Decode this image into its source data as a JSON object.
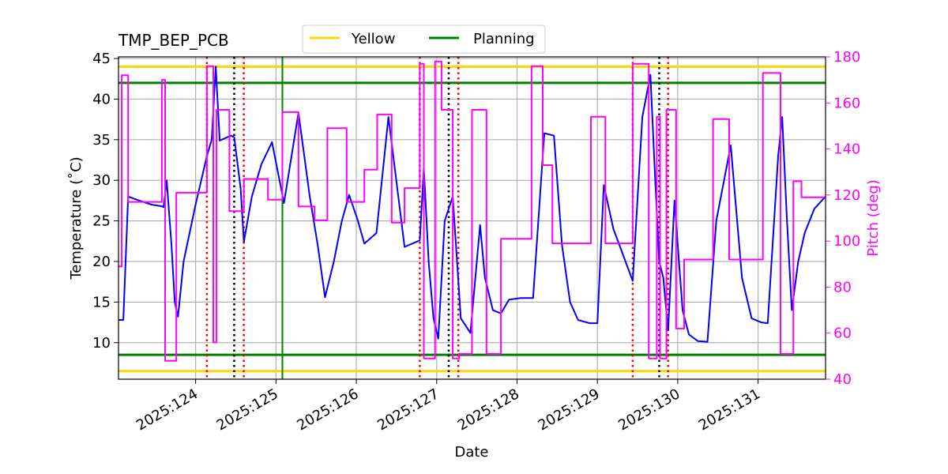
{
  "chart_data": {
    "type": "line",
    "title": "TMP_BEP_PCB",
    "xlabel": "Date",
    "ylabel": "Temperature ($^\\circ$C)",
    "ylabel_display": "Temperature (˚C)",
    "y2label": "Pitch (deg)",
    "xlim": [
      123.04,
      131.84
    ],
    "ylim": [
      5.5,
      45.2
    ],
    "y2lim": [
      40,
      180
    ],
    "x_ticks": [
      124,
      125,
      126,
      127,
      128,
      129,
      130,
      131
    ],
    "x_tick_labels": [
      "2025:124",
      "2025:125",
      "2025:126",
      "2025:127",
      "2025:128",
      "2025:129",
      "2025:130",
      "2025:131"
    ],
    "y_ticks": [
      10,
      15,
      20,
      25,
      30,
      35,
      40,
      45
    ],
    "y_tick_labels": [
      "10",
      "15",
      "20",
      "25",
      "30",
      "35",
      "40",
      "45"
    ],
    "y2_ticks": [
      40,
      60,
      80,
      100,
      120,
      140,
      160,
      180
    ],
    "y2_tick_labels": [
      "40",
      "60",
      "80",
      "100",
      "120",
      "140",
      "160",
      "180"
    ],
    "grid": true,
    "legend": {
      "placement": "top-center",
      "entries": [
        {
          "label": "Yellow",
          "color": "#ffd700"
        },
        {
          "label": "Planning",
          "color": "#008000"
        }
      ]
    },
    "limit_lines": [
      {
        "name": "Yellow",
        "values": [
          44.0,
          6.5
        ],
        "color": "#ffd700"
      },
      {
        "name": "Planning",
        "values": [
          42.0,
          8.5
        ],
        "color": "#008000"
      }
    ],
    "planning_vertical_x": 125.08,
    "red_dotted_x": [
      124.14,
      124.6,
      126.79,
      127.27,
      129.44,
      129.88
    ],
    "black_dotted_x": [
      124.48,
      127.15,
      129.77
    ],
    "series": [
      {
        "name": "TMP_BEP_PCB",
        "axis": "left",
        "color": "#0000ff",
        "points": [
          [
            123.04,
            12.8
          ],
          [
            123.1,
            12.8
          ],
          [
            123.16,
            28.0
          ],
          [
            123.3,
            27.5
          ],
          [
            123.45,
            27.0
          ],
          [
            123.58,
            26.8
          ],
          [
            123.6,
            26.7
          ],
          [
            123.64,
            30.0
          ],
          [
            123.7,
            22.0
          ],
          [
            123.74,
            15.0
          ],
          [
            123.78,
            13.2
          ],
          [
            123.85,
            20.0
          ],
          [
            124.0,
            27.0
          ],
          [
            124.14,
            33.0
          ],
          [
            124.2,
            35.0
          ],
          [
            124.25,
            44.0
          ],
          [
            124.3,
            34.9
          ],
          [
            124.44,
            35.5
          ],
          [
            124.48,
            35.3
          ],
          [
            124.56,
            29.0
          ],
          [
            124.6,
            22.4
          ],
          [
            124.7,
            28.0
          ],
          [
            124.82,
            32.0
          ],
          [
            124.95,
            34.7
          ],
          [
            125.1,
            27.2
          ],
          [
            125.28,
            38.3
          ],
          [
            125.42,
            28.0
          ],
          [
            125.52,
            22.0
          ],
          [
            125.61,
            15.6
          ],
          [
            125.72,
            20.0
          ],
          [
            125.82,
            25.0
          ],
          [
            125.91,
            28.2
          ],
          [
            126.02,
            25.0
          ],
          [
            126.1,
            22.2
          ],
          [
            126.25,
            23.5
          ],
          [
            126.4,
            37.8
          ],
          [
            126.6,
            21.8
          ],
          [
            126.79,
            22.6
          ],
          [
            126.84,
            31.5
          ],
          [
            126.9,
            20.0
          ],
          [
            126.96,
            13.0
          ],
          [
            127.02,
            10.5
          ],
          [
            127.1,
            25.0
          ],
          [
            127.2,
            28.0
          ],
          [
            127.3,
            13.0
          ],
          [
            127.42,
            11.2
          ],
          [
            127.54,
            24.5
          ],
          [
            127.6,
            18.0
          ],
          [
            127.7,
            14.0
          ],
          [
            127.8,
            13.6
          ],
          [
            127.9,
            15.3
          ],
          [
            128.05,
            15.5
          ],
          [
            128.2,
            15.5
          ],
          [
            128.34,
            35.8
          ],
          [
            128.46,
            35.5
          ],
          [
            128.56,
            22.0
          ],
          [
            128.66,
            15.0
          ],
          [
            128.76,
            12.8
          ],
          [
            128.9,
            12.4
          ],
          [
            129.0,
            12.4
          ],
          [
            129.08,
            29.4
          ],
          [
            129.2,
            24.0
          ],
          [
            129.35,
            20.0
          ],
          [
            129.44,
            17.6
          ],
          [
            129.56,
            37.8
          ],
          [
            129.66,
            43.0
          ],
          [
            129.72,
            30.0
          ],
          [
            129.77,
            20.0
          ],
          [
            129.82,
            18.0
          ],
          [
            129.88,
            11.5
          ],
          [
            129.96,
            27.5
          ],
          [
            130.06,
            14.0
          ],
          [
            130.14,
            11.0
          ],
          [
            130.25,
            10.2
          ],
          [
            130.37,
            10.1
          ],
          [
            130.48,
            25.0
          ],
          [
            130.66,
            34.3
          ],
          [
            130.8,
            18.0
          ],
          [
            130.92,
            13.0
          ],
          [
            131.04,
            12.5
          ],
          [
            131.12,
            12.4
          ],
          [
            131.2,
            25.0
          ],
          [
            131.25,
            33.0
          ],
          [
            131.3,
            37.8
          ],
          [
            131.36,
            25.0
          ],
          [
            131.42,
            14.0
          ],
          [
            131.5,
            20.0
          ],
          [
            131.58,
            23.5
          ],
          [
            131.7,
            26.5
          ],
          [
            131.84,
            28.0
          ]
        ]
      },
      {
        "name": "Pitch",
        "axis": "right",
        "color": "#ff00ff",
        "points": [
          [
            123.04,
            89
          ],
          [
            123.08,
            89
          ],
          [
            123.08,
            172
          ],
          [
            123.16,
            172
          ],
          [
            123.16,
            117
          ],
          [
            123.58,
            117
          ],
          [
            123.58,
            170
          ],
          [
            123.62,
            170
          ],
          [
            123.62,
            48
          ],
          [
            123.76,
            48
          ],
          [
            123.76,
            121
          ],
          [
            124.14,
            121
          ],
          [
            124.14,
            176
          ],
          [
            124.22,
            176
          ],
          [
            124.22,
            56
          ],
          [
            124.26,
            56
          ],
          [
            124.26,
            157
          ],
          [
            124.42,
            157
          ],
          [
            124.42,
            113
          ],
          [
            124.6,
            113
          ],
          [
            124.6,
            127
          ],
          [
            124.9,
            127
          ],
          [
            124.9,
            118
          ],
          [
            125.08,
            118
          ],
          [
            125.08,
            156
          ],
          [
            125.28,
            156
          ],
          [
            125.28,
            115
          ],
          [
            125.48,
            115
          ],
          [
            125.48,
            109
          ],
          [
            125.64,
            109
          ],
          [
            125.64,
            149
          ],
          [
            125.88,
            149
          ],
          [
            125.88,
            117
          ],
          [
            126.1,
            117
          ],
          [
            126.1,
            131
          ],
          [
            126.26,
            131
          ],
          [
            126.26,
            155
          ],
          [
            126.44,
            155
          ],
          [
            126.44,
            108
          ],
          [
            126.6,
            108
          ],
          [
            126.6,
            123
          ],
          [
            126.79,
            123
          ],
          [
            126.79,
            177
          ],
          [
            126.84,
            177
          ],
          [
            126.84,
            49
          ],
          [
            126.98,
            49
          ],
          [
            126.98,
            178
          ],
          [
            127.06,
            178
          ],
          [
            127.06,
            157
          ],
          [
            127.2,
            157
          ],
          [
            127.2,
            49
          ],
          [
            127.28,
            49
          ],
          [
            127.28,
            51
          ],
          [
            127.44,
            51
          ],
          [
            127.44,
            157
          ],
          [
            127.62,
            157
          ],
          [
            127.62,
            51
          ],
          [
            127.8,
            51
          ],
          [
            127.8,
            101
          ],
          [
            128.18,
            101
          ],
          [
            128.18,
            176
          ],
          [
            128.32,
            176
          ],
          [
            128.32,
            133
          ],
          [
            128.44,
            133
          ],
          [
            128.44,
            99
          ],
          [
            128.92,
            99
          ],
          [
            128.92,
            154
          ],
          [
            129.1,
            154
          ],
          [
            129.1,
            99
          ],
          [
            129.44,
            99
          ],
          [
            129.44,
            177
          ],
          [
            129.64,
            177
          ],
          [
            129.64,
            49
          ],
          [
            129.74,
            49
          ],
          [
            129.74,
            154
          ],
          [
            129.78,
            154
          ],
          [
            129.78,
            49
          ],
          [
            129.86,
            49
          ],
          [
            129.86,
            157
          ],
          [
            129.98,
            157
          ],
          [
            129.98,
            62
          ],
          [
            130.08,
            62
          ],
          [
            130.08,
            92
          ],
          [
            130.44,
            92
          ],
          [
            130.44,
            153
          ],
          [
            130.64,
            153
          ],
          [
            130.64,
            92
          ],
          [
            131.06,
            92
          ],
          [
            131.06,
            173
          ],
          [
            131.28,
            173
          ],
          [
            131.28,
            51
          ],
          [
            131.44,
            51
          ],
          [
            131.44,
            126
          ],
          [
            131.54,
            126
          ],
          [
            131.54,
            119
          ],
          [
            131.84,
            119
          ]
        ]
      }
    ]
  }
}
